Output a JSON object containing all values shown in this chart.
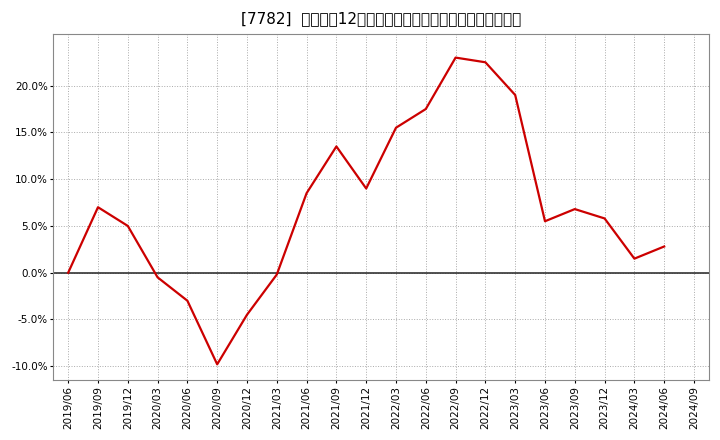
{
  "title": "[7782]  売上高の12か月移動合計の対前年同期増減率の推移",
  "line_color": "#cc0000",
  "background_color": "#ffffff",
  "plot_bg_color": "#ffffff",
  "grid_color": "#aaaaaa",
  "zero_line_color": "#333333",
  "dates": [
    "2019/06",
    "2019/09",
    "2019/12",
    "2020/03",
    "2020/06",
    "2020/09",
    "2020/12",
    "2021/03",
    "2021/06",
    "2021/09",
    "2021/12",
    "2022/03",
    "2022/06",
    "2022/09",
    "2022/12",
    "2023/03",
    "2023/06",
    "2023/09",
    "2023/12",
    "2024/03",
    "2024/06",
    "2024/09"
  ],
  "values": [
    0.0,
    7.0,
    5.0,
    -0.5,
    -3.0,
    -9.8,
    -4.5,
    -0.2,
    8.5,
    13.5,
    9.0,
    15.5,
    17.5,
    23.0,
    22.5,
    19.0,
    5.5,
    6.8,
    5.8,
    1.5,
    2.8,
    null
  ],
  "yticks": [
    -10.0,
    -5.0,
    0.0,
    5.0,
    10.0,
    15.0,
    20.0
  ],
  "ylim": [
    -11.5,
    25.5
  ],
  "title_fontsize": 11,
  "tick_fontsize": 7.5,
  "line_width": 1.6
}
